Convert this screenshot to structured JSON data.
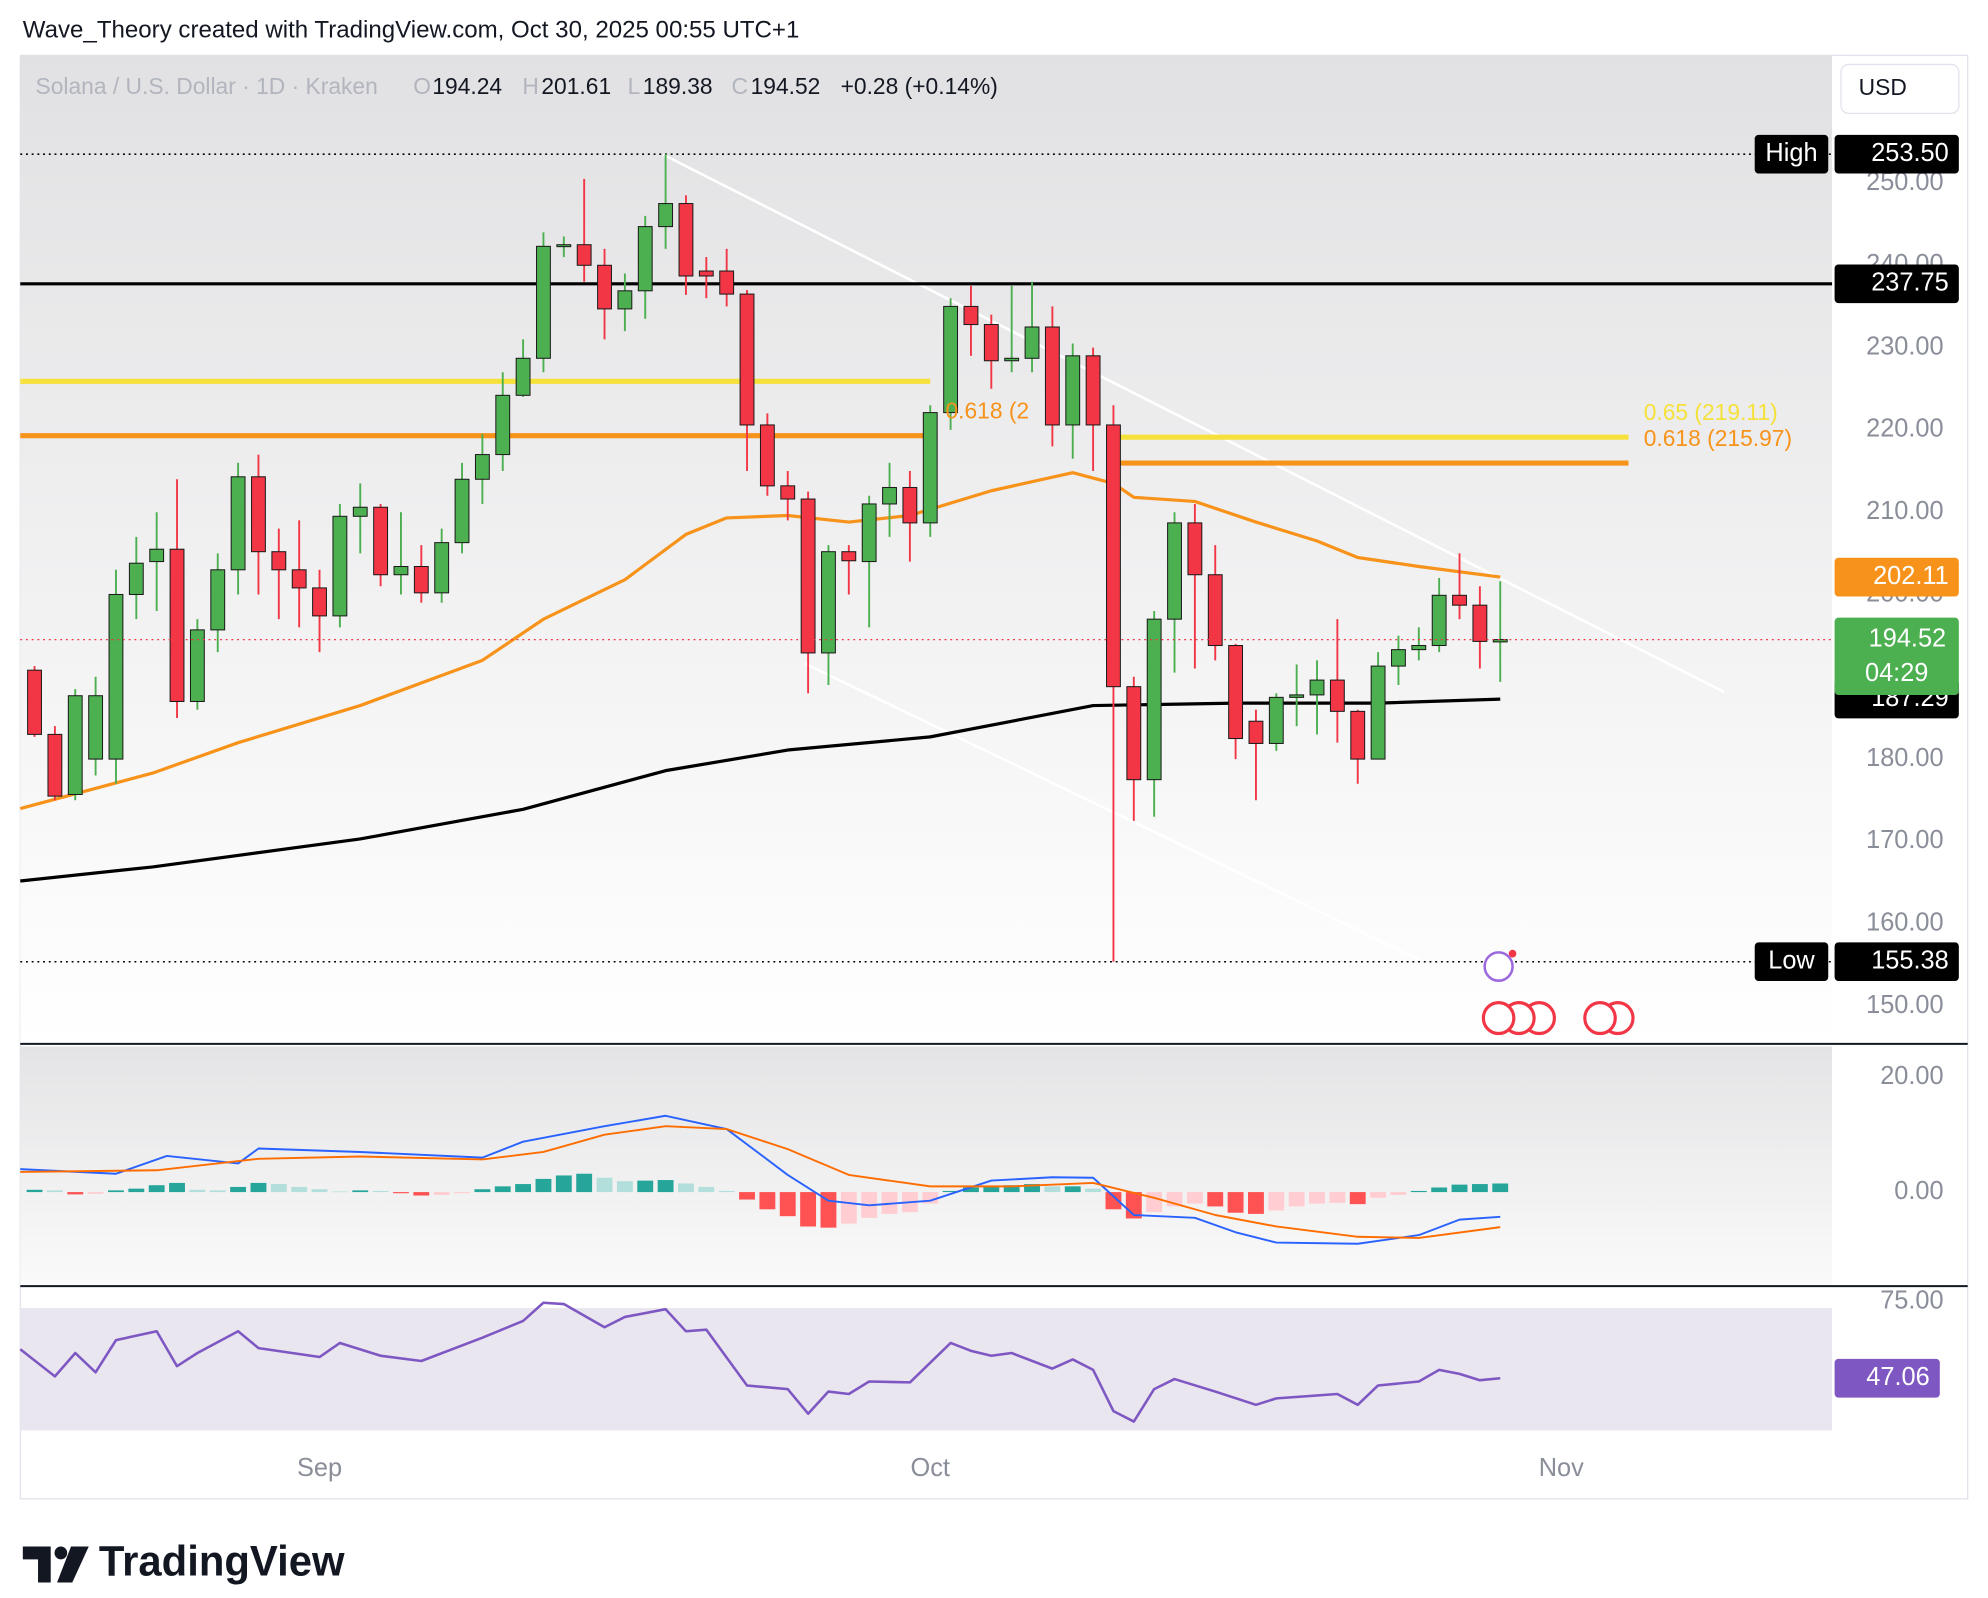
{
  "header": {
    "attribution": "Wave_Theory created with TradingView.com, Oct 30, 2025 00:55 UTC+1",
    "symbol": "Solana / U.S. Dollar · 1D · Kraken",
    "ohlc": [
      {
        "key": "O",
        "value": 194.24
      },
      {
        "key": "H",
        "value": 201.61
      },
      {
        "key": "L",
        "value": 189.38
      },
      {
        "key": "C",
        "value": 194.52
      }
    ],
    "change": "+0.28 (+0.14%)",
    "currency": "USD"
  },
  "chart_data": [
    {
      "type": "candlestick",
      "x": [
        0,
        1,
        2,
        3,
        4,
        5,
        6,
        7,
        8,
        9,
        10,
        11,
        12,
        13,
        14,
        15,
        16,
        17,
        18,
        19,
        20,
        21,
        22,
        23,
        24,
        25,
        26,
        27,
        28,
        29,
        30,
        31,
        32,
        33,
        34,
        35,
        36,
        37,
        38,
        39,
        40,
        41,
        42,
        43,
        44,
        45,
        46,
        47,
        48,
        49,
        50,
        51,
        52,
        53,
        54,
        55,
        56,
        57,
        58,
        59,
        60,
        61,
        62,
        63,
        64,
        65,
        66,
        67,
        68,
        69,
        70,
        71,
        72
      ],
      "open": [
        190.8,
        183,
        175.7,
        180,
        180,
        200,
        204,
        205.5,
        187,
        195.7,
        203,
        214.3,
        205.2,
        203,
        200.8,
        197.4,
        209.5,
        210.6,
        202.4,
        203.4,
        200.2,
        206.3,
        214,
        217,
        224.2,
        228.7,
        242.3,
        242.5,
        240,
        234.7,
        236.9,
        244.7,
        247.5,
        239.3,
        239.3,
        236.5,
        220.6,
        213.2,
        211.6,
        192.9,
        205.2,
        204,
        211,
        213,
        208.7,
        222.1,
        235,
        232.8,
        228.4,
        228.7,
        232.5,
        220.6,
        229,
        220.6,
        188.8,
        177.5,
        197,
        208.7,
        202.4,
        193.8,
        184.6,
        181.9,
        187.5,
        187.8,
        189.6,
        185.8,
        180,
        191.3,
        193.3,
        193.8,
        199.9,
        198.7,
        194.24
      ],
      "high": [
        191.3,
        184,
        188.5,
        190,
        203,
        207,
        210,
        214,
        197,
        205,
        216,
        217,
        208,
        209,
        203,
        211,
        213.5,
        211,
        210,
        206,
        208,
        216,
        219.5,
        227,
        231,
        244,
        243.5,
        250.5,
        242,
        239,
        246,
        253.5,
        248.5,
        241,
        242,
        237,
        222,
        215,
        212.5,
        206,
        206,
        212,
        216,
        215,
        223,
        236,
        237.5,
        234,
        237.5,
        238,
        235,
        230.5,
        230,
        223,
        190,
        198,
        210,
        211,
        206,
        194,
        186,
        188,
        191.5,
        192,
        197,
        186,
        193,
        195,
        196,
        202,
        205,
        201,
        201.61
      ],
      "low": [
        182.7,
        175,
        175,
        178,
        177,
        197,
        198,
        185,
        186,
        193,
        200,
        200,
        197,
        196,
        193,
        196,
        205,
        201,
        200,
        199,
        199,
        205,
        211,
        215,
        224,
        227,
        241,
        238,
        231,
        232,
        233.5,
        242,
        236.4,
        236,
        235,
        215,
        212,
        209,
        188,
        189,
        200,
        196,
        207,
        204,
        207,
        220,
        229,
        225,
        227,
        227,
        218,
        216.5,
        215,
        155.38,
        172.5,
        173,
        190.5,
        191,
        192,
        180,
        175,
        181,
        184,
        183,
        182,
        177,
        180,
        189,
        192,
        193,
        197,
        191,
        189.38
      ],
      "close": [
        183,
        175.5,
        187.7,
        187.7,
        200,
        203.8,
        205.5,
        187,
        195.7,
        203,
        214.3,
        205.2,
        203,
        200.8,
        197.4,
        209.5,
        210.6,
        202.4,
        203.4,
        200.2,
        206.3,
        214,
        217,
        224.2,
        228.7,
        242.3,
        242.5,
        240,
        234.7,
        236.9,
        244.7,
        247.5,
        238.7,
        238.7,
        236.5,
        220.6,
        213.2,
        211.6,
        192.9,
        205.2,
        204.1,
        211,
        213,
        208.7,
        222.1,
        235,
        232.8,
        228.4,
        228.7,
        232.5,
        220.6,
        229,
        220.6,
        188.8,
        177.5,
        197,
        208.7,
        202.4,
        193.8,
        182.5,
        181.9,
        187.5,
        187.8,
        189.6,
        185.8,
        180,
        191.3,
        193.3,
        193.8,
        199.9,
        198.7,
        194.3,
        194.52
      ],
      "up_color": "#4caf50",
      "down_color": "#f23645",
      "current_color": "#f23645",
      "countdown": "04:29",
      "overlays": [
        {
          "color": "#f7931a",
          "x": [
            -0.7,
            5.8,
            10,
            16,
            22,
            25,
            29,
            32,
            34,
            37,
            40,
            43,
            47,
            51,
            53,
            54,
            57,
            60,
            63,
            65,
            68,
            72
          ],
          "values": [
            174,
            178.3,
            182,
            186.5,
            192,
            197,
            201.8,
            207.3,
            209.3,
            209.6,
            208.8,
            209.6,
            212.6,
            214.8,
            213.5,
            211.8,
            211.3,
            208.8,
            206.5,
            204.5,
            203.4,
            202.11
          ]
        },
        {
          "color": "#000000",
          "x": [
            -0.7,
            5.8,
            16,
            24,
            31,
            37,
            44,
            52,
            59,
            66,
            72
          ],
          "values": [
            165.2,
            166.9,
            170.3,
            173.9,
            178.6,
            181.1,
            182.7,
            186.5,
            186.8,
            186.8,
            187.29
          ]
        }
      ],
      "levels": [
        {
          "value": 253.5,
          "label": "253.50",
          "tag": "High",
          "style": "dotted",
          "color": "#000000"
        },
        {
          "value": 237.75,
          "label": "237.75",
          "style": "solid",
          "color": "#000000"
        },
        {
          "value": 155.38,
          "label": "155.38",
          "tag": "Low",
          "style": "dotted",
          "color": "#000000"
        }
      ],
      "fibs": [
        {
          "value": 225.9,
          "color": "#f5e13a",
          "x": [
            -0.7,
            44
          ]
        },
        {
          "value": 219.3,
          "color": "#f7931a",
          "x": [
            -0.7,
            44
          ],
          "label": "0.618 (2"
        },
        {
          "value": 219.11,
          "color": "#f5e13a",
          "x": [
            53.3,
            78.3
          ],
          "label": "0.65 (219.11)"
        },
        {
          "value": 215.97,
          "color": "#f7931a",
          "x": [
            53.3,
            78.3
          ],
          "label": "0.618 (215.97)"
        }
      ],
      "xlim": [
        -0.7,
        88.3
      ],
      "xticks": [
        {
          "value": 14,
          "label": "Sep"
        },
        {
          "value": 44,
          "label": "Oct"
        },
        {
          "value": 75,
          "label": "Nov"
        }
      ],
      "ylim": [
        145.4,
        265.5
      ],
      "yticks": [
        {
          "value": 150,
          "label": "150.00"
        },
        {
          "value": 160,
          "label": "160.00"
        },
        {
          "value": 170,
          "label": "170.00"
        },
        {
          "value": 180,
          "label": "180.00"
        },
        {
          "value": 190,
          "label": "190.00"
        },
        {
          "value": 200,
          "label": "200.00"
        },
        {
          "value": 210,
          "label": "210.00"
        },
        {
          "value": 220,
          "label": "220.00"
        },
        {
          "value": 230,
          "label": "230.00"
        },
        {
          "value": 240,
          "label": "240.00"
        },
        {
          "value": 250,
          "label": "250.00"
        }
      ],
      "grid": false
    },
    {
      "type": "macd",
      "series": [
        {
          "color": "#2962ff",
          "x": [
            -0.7,
            4,
            6.5,
            10,
            11,
            16,
            22,
            24,
            28,
            31,
            34,
            37,
            39,
            41,
            44,
            47,
            50,
            52,
            54,
            57,
            59,
            61,
            65,
            68,
            70,
            72
          ],
          "values": [
            4,
            3.2,
            6.3,
            5,
            7.6,
            7,
            6,
            8.8,
            11.5,
            13.3,
            11,
            3,
            -1.5,
            -2.3,
            -1.5,
            2,
            2.6,
            2.5,
            -4,
            -4.5,
            -7,
            -8.8,
            -9,
            -7.5,
            -4.8,
            -4.3
          ]
        },
        {
          "color": "#ff6d00",
          "x": [
            -0.7,
            6,
            11,
            16,
            22,
            25,
            28,
            31,
            34,
            37,
            40,
            44,
            48,
            52,
            55,
            58,
            61,
            65,
            68,
            72
          ],
          "values": [
            3.5,
            3.8,
            5.8,
            6.2,
            5.7,
            7,
            10,
            11.5,
            11,
            7.5,
            3,
            1,
            1,
            1.6,
            -1,
            -4,
            -6,
            -7.8,
            -8,
            -6.1
          ]
        }
      ],
      "histogram": {
        "x": [
          0,
          1,
          2,
          3,
          4,
          5,
          6,
          7,
          8,
          9,
          10,
          11,
          12,
          13,
          14,
          15,
          16,
          17,
          18,
          19,
          20,
          21,
          22,
          23,
          24,
          25,
          26,
          27,
          28,
          29,
          30,
          31,
          32,
          33,
          34,
          35,
          36,
          37,
          38,
          39,
          40,
          41,
          42,
          43,
          44,
          45,
          46,
          47,
          48,
          49,
          50,
          51,
          52,
          53,
          54,
          55,
          56,
          57,
          58,
          59,
          60,
          61,
          62,
          63,
          64,
          65,
          66,
          67,
          68,
          69,
          70,
          71,
          72
        ],
        "values": [
          0.4,
          0.3,
          -0.4,
          -0.3,
          0.3,
          0.6,
          1.2,
          1.6,
          0.4,
          0.3,
          0.9,
          1.6,
          1.4,
          0.9,
          0.5,
          0.1,
          0.3,
          0.2,
          -0.2,
          -0.6,
          -0.5,
          -0.2,
          0.5,
          1,
          1.4,
          2.3,
          2.9,
          3.2,
          2.5,
          1.9,
          2,
          2.1,
          1.5,
          0.9,
          0.2,
          -1.3,
          -3,
          -4.2,
          -6,
          -6.2,
          -5.5,
          -4.5,
          -3.8,
          -3.5,
          -2,
          0.2,
          0.8,
          1,
          1.2,
          1.4,
          1,
          1,
          0.6,
          -3,
          -4.6,
          -3.5,
          -2.5,
          -2,
          -2.5,
          -3.6,
          -3.8,
          -3.2,
          -2.5,
          -2,
          -1.9,
          -2.1,
          -1,
          -0.5,
          0.2,
          0.8,
          1.3,
          1.4,
          1.5
        ],
        "colors": [
          "#26a69a",
          "#b2dfdb",
          "#ffcdd2",
          "#ff5252"
        ]
      },
      "xlim": [
        -0.7,
        88.3
      ],
      "ylim": [
        -16.4,
        25.4
      ],
      "yticks": [
        {
          "value": 20,
          "label": "20.00"
        },
        {
          "value": 0,
          "label": "0.00"
        }
      ]
    },
    {
      "type": "line",
      "series": [
        {
          "color": "#7e57c2",
          "x": [
            -0.7,
            1,
            2,
            3,
            4,
            6,
            7,
            8,
            10,
            11,
            14,
            15,
            17,
            19,
            22,
            24,
            25,
            26,
            28,
            29,
            31,
            32,
            33,
            35,
            37,
            38,
            39,
            40,
            41,
            43,
            45,
            46,
            47,
            48,
            50,
            51,
            52,
            53,
            54,
            55,
            56,
            58,
            60,
            61,
            64,
            65,
            66,
            68,
            69,
            70,
            71,
            72
          ],
          "values": [
            56.5,
            47.7,
            55.3,
            49,
            59.5,
            62.4,
            51,
            55.3,
            62.4,
            56.9,
            54,
            58.6,
            54.4,
            52.7,
            60.3,
            65.8,
            71.7,
            71.3,
            63.7,
            67.1,
            69.6,
            62.4,
            62.9,
            44.7,
            43.5,
            35.5,
            42.7,
            41.9,
            46,
            45.7,
            58.6,
            56,
            54.4,
            55.3,
            50.2,
            53.2,
            49.8,
            36.3,
            32.9,
            43.5,
            46.8,
            42.7,
            38.4,
            40.5,
            41.9,
            38.4,
            44.7,
            46,
            49.8,
            48.5,
            46.4,
            47.06
          ]
        }
      ],
      "xlim": [
        -0.7,
        88.3
      ],
      "ylim": [
        25.8,
        76.3
      ],
      "yticks": [
        {
          "value": 75,
          "label": "75.00"
        }
      ]
    }
  ],
  "footer": {
    "brand": "TradingView"
  }
}
